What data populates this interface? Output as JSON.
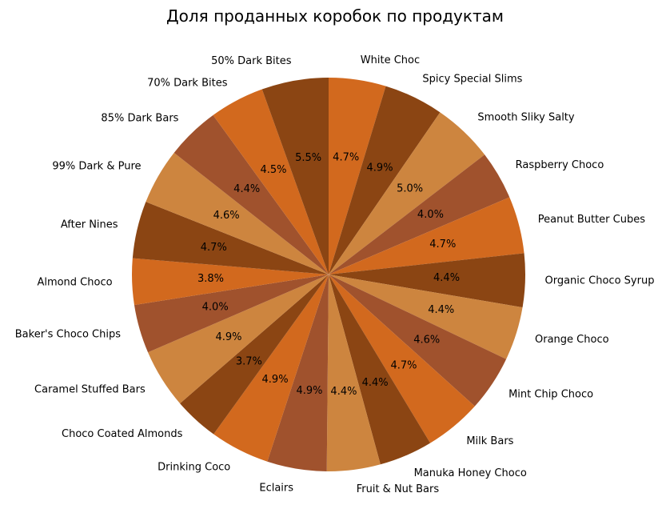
{
  "chart_data": {
    "type": "pie",
    "title": "Доля проданных коробок по продуктам",
    "start_angle_deg": 90,
    "direction": "clockwise",
    "colors": [
      "#d2691e",
      "#8b4513",
      "#cd853f",
      "#a0522d"
    ],
    "slices": [
      {
        "label": "White Choc",
        "value": 4.7,
        "pct_label": "4.7%"
      },
      {
        "label": "Spicy Special Slims",
        "value": 4.9,
        "pct_label": "4.9%"
      },
      {
        "label": "Smooth Sliky Salty",
        "value": 5.0,
        "pct_label": "5.0%"
      },
      {
        "label": "Raspberry Choco",
        "value": 4.0,
        "pct_label": "4.0%"
      },
      {
        "label": "Peanut Butter Cubes",
        "value": 4.7,
        "pct_label": "4.7%"
      },
      {
        "label": "Organic Choco Syrup",
        "value": 4.4,
        "pct_label": "4.4%"
      },
      {
        "label": "Orange Choco",
        "value": 4.4,
        "pct_label": "4.4%"
      },
      {
        "label": "Mint Chip Choco",
        "value": 4.6,
        "pct_label": "4.6%"
      },
      {
        "label": "Milk Bars",
        "value": 4.7,
        "pct_label": "4.7%"
      },
      {
        "label": "Manuka Honey Choco",
        "value": 4.4,
        "pct_label": "4.4%"
      },
      {
        "label": "Fruit & Nut Bars",
        "value": 4.4,
        "pct_label": "4.4%"
      },
      {
        "label": "Eclairs",
        "value": 4.9,
        "pct_label": "4.9%"
      },
      {
        "label": "Drinking Coco",
        "value": 4.9,
        "pct_label": "4.9%"
      },
      {
        "label": "Choco Coated Almonds",
        "value": 3.7,
        "pct_label": "3.7%"
      },
      {
        "label": "Caramel Stuffed Bars",
        "value": 4.9,
        "pct_label": "4.9%"
      },
      {
        "label": "Baker's Choco Chips",
        "value": 4.0,
        "pct_label": "4.0%"
      },
      {
        "label": "Almond Choco",
        "value": 3.8,
        "pct_label": "3.8%"
      },
      {
        "label": "After Nines",
        "value": 4.7,
        "pct_label": "4.7%"
      },
      {
        "label": "99% Dark & Pure",
        "value": 4.6,
        "pct_label": "4.6%"
      },
      {
        "label": "85% Dark Bars",
        "value": 4.4,
        "pct_label": "4.4%"
      },
      {
        "label": "70% Dark Bites",
        "value": 4.5,
        "pct_label": "4.5%"
      },
      {
        "label": "50% Dark Bites",
        "value": 5.5,
        "pct_label": "5.5%"
      }
    ]
  }
}
